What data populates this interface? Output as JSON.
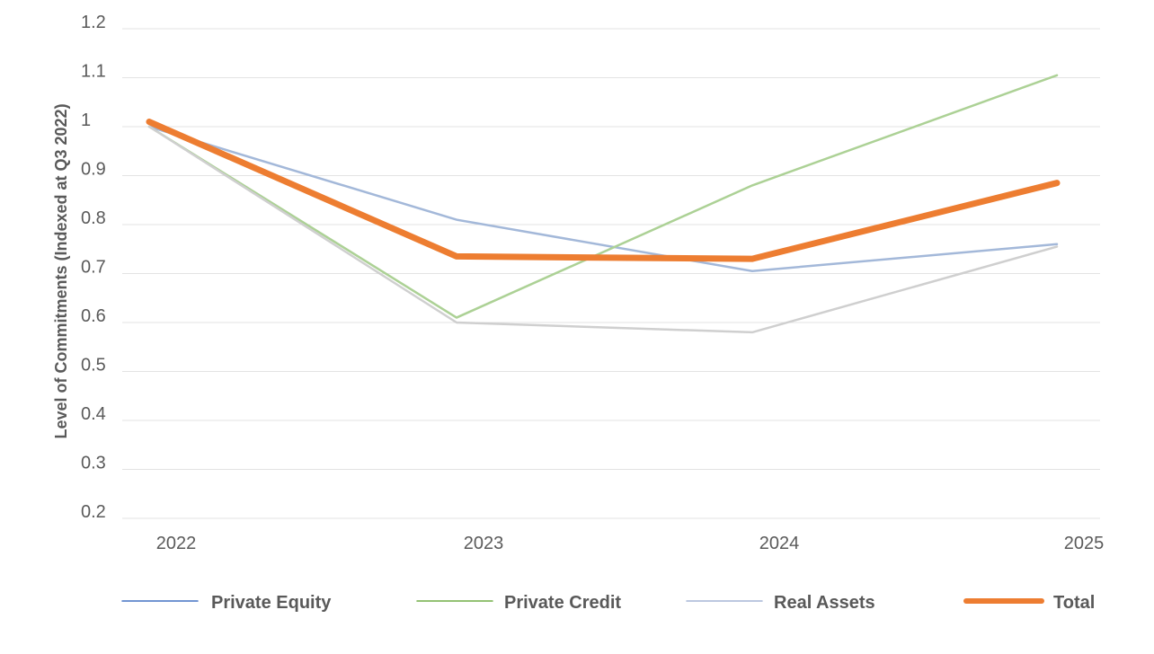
{
  "chart_data": {
    "type": "line",
    "title": "",
    "xlabel": "",
    "ylabel": "Level of Commitments (Indexed at Q3 2022)",
    "categories": [
      "2022",
      "2023",
      "2024",
      "2025"
    ],
    "ylim": [
      0.2,
      1.2
    ],
    "yticks": [
      "0.2",
      "0.3",
      "0.4",
      "0.5",
      "0.6",
      "0.7",
      "0.8",
      "0.9",
      "1",
      "1.1",
      "1.2"
    ],
    "grid": true,
    "legend_position": "bottom",
    "series": [
      {
        "name": "Private Equity",
        "color": "#a3b8d9",
        "values": [
          1.0,
          0.81,
          0.705,
          0.76
        ]
      },
      {
        "name": "Private Credit",
        "color": "#acd195",
        "values": [
          1.0,
          0.61,
          0.88,
          1.105
        ]
      },
      {
        "name": "Real Assets",
        "color": "#cfcfcf",
        "values": [
          1.0,
          0.6,
          0.58,
          0.755
        ]
      },
      {
        "name": "Total",
        "color": "#ed7d31",
        "values": [
          1.01,
          0.735,
          0.73,
          0.885
        ]
      }
    ],
    "legend_swatch_colors": [
      "#4472c4",
      "#70ad47",
      "#a5b5d5",
      "#ed7d31"
    ]
  }
}
